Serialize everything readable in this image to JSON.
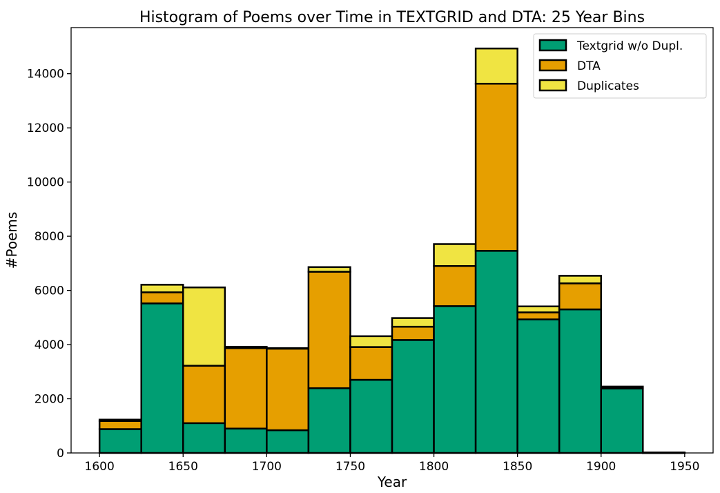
{
  "chart_data": {
    "type": "bar",
    "title": "Histogram of Poems over Time in TEXTGRID and DTA: 25 Year Bins",
    "xlabel": "Year",
    "ylabel": "#Poems",
    "xlim": [
      1583,
      1967
    ],
    "ylim": [
      0,
      15700
    ],
    "xticks": [
      1600,
      1650,
      1700,
      1750,
      1800,
      1850,
      1900,
      1950
    ],
    "yticks": [
      0,
      2000,
      4000,
      6000,
      8000,
      10000,
      12000,
      14000
    ],
    "bin_width": 25,
    "bins": [
      1600,
      1625,
      1650,
      1675,
      1700,
      1725,
      1750,
      1775,
      1800,
      1825,
      1850,
      1875,
      1900,
      1925
    ],
    "stacked": true,
    "legend_position": "top-right",
    "grid": false,
    "series": [
      {
        "name": "Textgrid w/o Dupl.",
        "color": "#009E73",
        "values": [
          880,
          5520,
          1100,
          900,
          840,
          2390,
          2700,
          4170,
          5420,
          7460,
          4930,
          5300,
          2380,
          0
        ]
      },
      {
        "name": "DTA",
        "color": "#E69F00",
        "values": [
          300,
          410,
          2120,
          2970,
          3010,
          4300,
          1210,
          490,
          1480,
          6170,
          260,
          960,
          20,
          0
        ]
      },
      {
        "name": "Duplicates",
        "color": "#F0E442",
        "values": [
          50,
          280,
          2890,
          50,
          20,
          170,
          400,
          320,
          810,
          1300,
          220,
          280,
          50,
          20
        ]
      }
    ]
  }
}
